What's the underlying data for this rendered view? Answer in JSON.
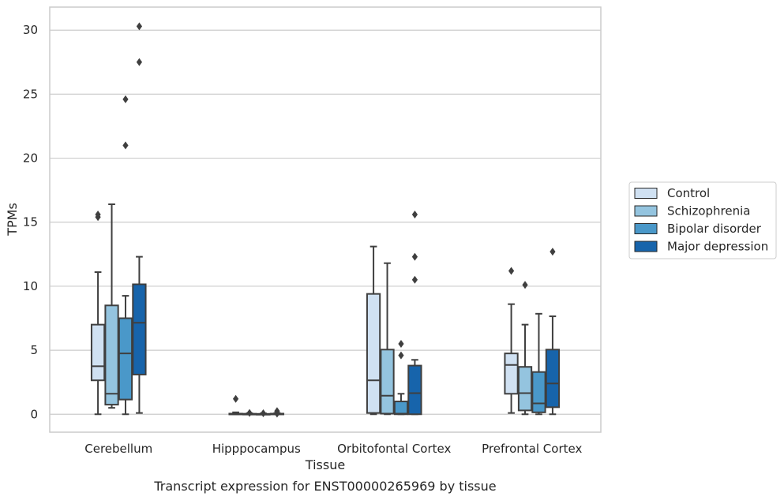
{
  "caption": "Transcript expression for ENST00000265969 by tissue",
  "chart_data": {
    "type": "boxplot",
    "title": "",
    "xlabel": "Tissue",
    "ylabel": "TPMs",
    "ylim": [
      -1.4,
      31.8
    ],
    "yticks": [
      0,
      5,
      10,
      15,
      20,
      25,
      30
    ],
    "grid": "horizontal",
    "legend_placement": "right",
    "categories": [
      "Cerebellum",
      "Hipppocampus",
      "Orbitofontal Cortex",
      "Prefrontal Cortex"
    ],
    "series": [
      {
        "name": "Control",
        "color": "#d0e1f2",
        "boxes": [
          {
            "whisker_low": 0.0,
            "q1": 2.65,
            "median": 3.75,
            "q3": 7.0,
            "whisker_high": 11.1,
            "outliers": [
              15.4,
              15.6
            ]
          },
          {
            "whisker_low": 0.0,
            "q1": 0.0,
            "median": 0.02,
            "q3": 0.05,
            "whisker_high": 0.15,
            "outliers": [
              1.2
            ]
          },
          {
            "whisker_low": 0.0,
            "q1": 0.1,
            "median": 2.65,
            "q3": 9.4,
            "whisker_high": 13.1,
            "outliers": []
          },
          {
            "whisker_low": 0.1,
            "q1": 1.6,
            "median": 3.85,
            "q3": 4.75,
            "whisker_high": 8.6,
            "outliers": [
              11.2
            ]
          }
        ]
      },
      {
        "name": "Schizophrenia",
        "color": "#94c4df",
        "boxes": [
          {
            "whisker_low": 0.5,
            "q1": 0.75,
            "median": 1.6,
            "q3": 8.5,
            "whisker_high": 16.4,
            "outliers": []
          },
          {
            "whisker_low": 0.0,
            "q1": 0.0,
            "median": 0.02,
            "q3": 0.04,
            "whisker_high": 0.08,
            "outliers": [
              0.1
            ]
          },
          {
            "whisker_low": 0.0,
            "q1": 0.05,
            "median": 1.45,
            "q3": 5.05,
            "whisker_high": 11.8,
            "outliers": []
          },
          {
            "whisker_low": 0.0,
            "q1": 0.3,
            "median": 1.65,
            "q3": 3.7,
            "whisker_high": 7.0,
            "outliers": [
              10.1
            ]
          }
        ]
      },
      {
        "name": "Bipolar disorder",
        "color": "#4a98c9",
        "boxes": [
          {
            "whisker_low": 0.0,
            "q1": 1.15,
            "median": 4.75,
            "q3": 7.5,
            "whisker_high": 9.25,
            "outliers": [
              21.0,
              24.6
            ]
          },
          {
            "whisker_low": 0.0,
            "q1": 0.0,
            "median": 0.01,
            "q3": 0.03,
            "whisker_high": 0.07,
            "outliers": [
              0.08
            ]
          },
          {
            "whisker_low": 0.0,
            "q1": 0.0,
            "median": 0.05,
            "q3": 1.0,
            "whisker_high": 1.6,
            "outliers": [
              4.6,
              5.5
            ]
          },
          {
            "whisker_low": 0.0,
            "q1": 0.15,
            "median": 0.85,
            "q3": 3.3,
            "whisker_high": 7.85,
            "outliers": []
          }
        ]
      },
      {
        "name": "Major depression",
        "color": "#1764ab",
        "boxes": [
          {
            "whisker_low": 0.1,
            "q1": 3.1,
            "median": 7.15,
            "q3": 10.15,
            "whisker_high": 12.3,
            "outliers": [
              27.5,
              30.3
            ]
          },
          {
            "whisker_low": 0.0,
            "q1": 0.0,
            "median": 0.02,
            "q3": 0.05,
            "whisker_high": 0.1,
            "outliers": [
              0.25,
              0.05
            ]
          },
          {
            "whisker_low": 0.0,
            "q1": 0.0,
            "median": 1.65,
            "q3": 3.8,
            "whisker_high": 4.25,
            "outliers": [
              10.5,
              12.3,
              15.6
            ]
          },
          {
            "whisker_low": 0.0,
            "q1": 0.55,
            "median": 2.4,
            "q3": 5.05,
            "whisker_high": 7.65,
            "outliers": [
              12.7
            ]
          }
        ]
      }
    ]
  }
}
